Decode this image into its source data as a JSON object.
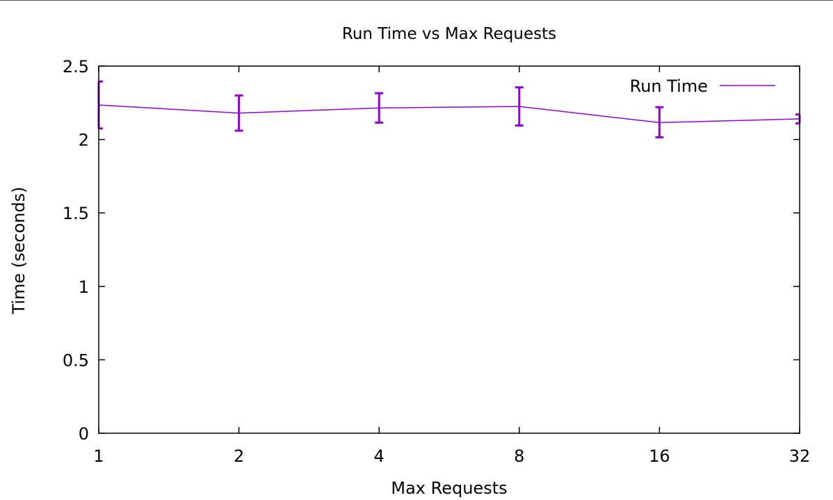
{
  "chart_data": {
    "type": "line",
    "title": "Run Time vs Max Requests",
    "xlabel": "Max Requests",
    "ylabel": "Time (seconds)",
    "x_scale": "log2",
    "categories": [
      "1",
      "2",
      "4",
      "8",
      "16",
      "32"
    ],
    "x": [
      1,
      2,
      4,
      8,
      16,
      32
    ],
    "ylim": [
      0,
      2.5
    ],
    "yticks": [
      "0",
      "0.5",
      "1",
      "1.5",
      "2",
      "2.5"
    ],
    "grid": false,
    "legend_position": "top-right",
    "series": [
      {
        "name": "Run Time",
        "color": "#9400d3",
        "values": [
          2.235,
          2.18,
          2.215,
          2.225,
          2.115,
          2.14
        ],
        "error_low": [
          2.075,
          2.06,
          2.115,
          2.095,
          2.015,
          2.11
        ],
        "error_high": [
          2.395,
          2.3,
          2.315,
          2.355,
          2.22,
          2.17
        ]
      }
    ]
  }
}
